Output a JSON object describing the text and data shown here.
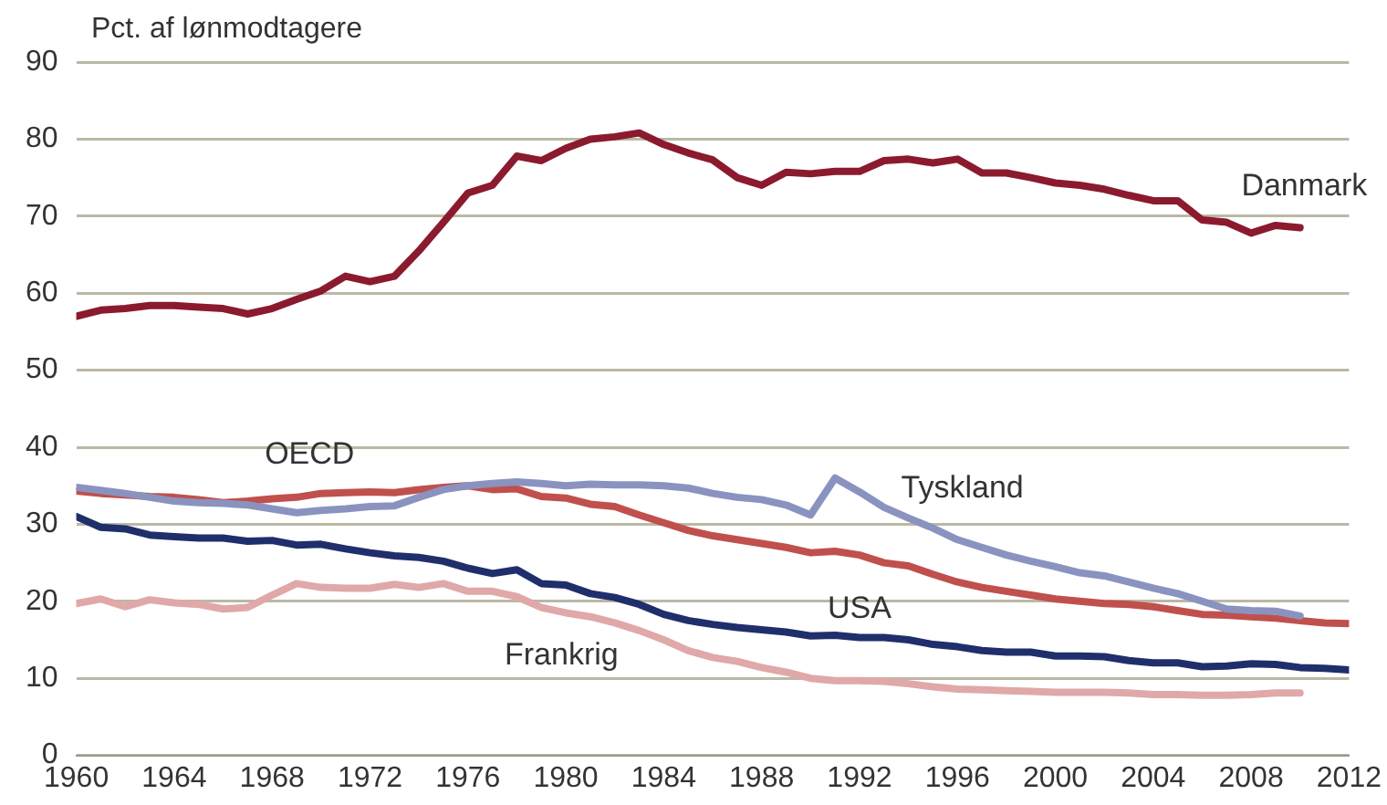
{
  "chart_data": {
    "type": "line",
    "ylabel": "Pct. af lønmodtagere",
    "x": [
      1960,
      1961,
      1962,
      1963,
      1964,
      1965,
      1966,
      1967,
      1968,
      1969,
      1970,
      1971,
      1972,
      1973,
      1974,
      1975,
      1976,
      1977,
      1978,
      1979,
      1980,
      1981,
      1982,
      1983,
      1984,
      1985,
      1986,
      1987,
      1988,
      1989,
      1990,
      1991,
      1992,
      1993,
      1994,
      1995,
      1996,
      1997,
      1998,
      1999,
      2000,
      2001,
      2002,
      2003,
      2004,
      2005,
      2006,
      2007,
      2008,
      2009,
      2010,
      2011,
      2012
    ],
    "xlim": [
      1960,
      2012
    ],
    "xticks": [
      1960,
      1964,
      1968,
      1972,
      1976,
      1980,
      1984,
      1988,
      1992,
      1996,
      2000,
      2004,
      2008,
      2012
    ],
    "ylim": [
      0,
      90
    ],
    "yticks": [
      0,
      10,
      20,
      30,
      40,
      50,
      60,
      70,
      80,
      90
    ],
    "grid": "y",
    "legend": false,
    "marker": "none",
    "line_style": "solid",
    "series": [
      {
        "name": "Danmark",
        "color": "#8b1a2e",
        "values": [
          57,
          57.8,
          58,
          58.4,
          58.4,
          58.2,
          58,
          57.3,
          58,
          59.2,
          60.3,
          62.2,
          61.5,
          62.2,
          65.5,
          69.2,
          73,
          74,
          77.8,
          77.2,
          78.8,
          80,
          80.3,
          80.8,
          79.3,
          78.2,
          77.3,
          75,
          74,
          75.7,
          75.5,
          75.8,
          75.8,
          77.2,
          77.4,
          76.9,
          77.4,
          75.6,
          75.6,
          75,
          74.3,
          74,
          73.5,
          72.7,
          72,
          72,
          69.5,
          69.2,
          67.8,
          68.8,
          68.5,
          null,
          null
        ]
      },
      {
        "name": "Tyskland",
        "color": "#8a93c0",
        "values": [
          34.8,
          34.4,
          34,
          33.5,
          33,
          32.8,
          32.7,
          32.5,
          32,
          31.5,
          31.8,
          32,
          32.3,
          32.4,
          33.5,
          34.5,
          35,
          35.3,
          35.5,
          35.3,
          35,
          35.2,
          35.1,
          35.1,
          35,
          34.7,
          34,
          33.5,
          33.2,
          32.5,
          31.2,
          36,
          34.2,
          32.2,
          30.8,
          29.5,
          28,
          27,
          26,
          25.2,
          24.5,
          23.7,
          23.3,
          22.5,
          21.7,
          21,
          20,
          19,
          18.8,
          18.7,
          18.1,
          null,
          null
        ]
      },
      {
        "name": "OECD",
        "color": "#c0504d",
        "values": [
          34.3,
          34,
          33.8,
          33.6,
          33.5,
          33.2,
          32.8,
          33,
          33.3,
          33.5,
          34,
          34.1,
          34.2,
          34.1,
          34.5,
          34.8,
          35,
          34.5,
          34.6,
          33.6,
          33.4,
          32.6,
          32.3,
          31.2,
          30.2,
          29.2,
          28.5,
          28,
          27.5,
          27,
          26.3,
          26.5,
          26,
          25,
          24.6,
          23.5,
          22.5,
          21.8,
          21.3,
          20.8,
          20.3,
          20,
          19.7,
          19.6,
          19.3,
          18.8,
          18.3,
          18.2,
          18,
          17.8,
          17.5,
          17.2,
          17.1
        ]
      },
      {
        "name": "USA",
        "color": "#1f2f6b",
        "values": [
          31,
          29.6,
          29.4,
          28.6,
          28.4,
          28.2,
          28.2,
          27.8,
          27.9,
          27.3,
          27.4,
          26.8,
          26.3,
          25.9,
          25.7,
          25.2,
          24.3,
          23.6,
          24.1,
          22.3,
          22.1,
          21,
          20.5,
          19.6,
          18.3,
          17.5,
          17,
          16.6,
          16.3,
          16,
          15.5,
          15.6,
          15.3,
          15.3,
          15,
          14.4,
          14.1,
          13.6,
          13.4,
          13.4,
          12.9,
          12.9,
          12.8,
          12.3,
          12,
          12,
          11.5,
          11.6,
          11.9,
          11.8,
          11.4,
          11.3,
          11.1
        ]
      },
      {
        "name": "Frankrig",
        "color": "#e0a8a8",
        "values": [
          19.7,
          20.3,
          19.3,
          20.2,
          19.8,
          19.6,
          19,
          19.2,
          20.8,
          22.3,
          21.8,
          21.7,
          21.7,
          22.2,
          21.8,
          22.3,
          21.3,
          21.3,
          20.6,
          19.2,
          18.5,
          18,
          17.2,
          16.2,
          15,
          13.6,
          12.7,
          12.2,
          11.4,
          10.8,
          10,
          9.7,
          9.7,
          9.6,
          9.3,
          8.9,
          8.6,
          8.5,
          8.4,
          8.3,
          8.2,
          8.2,
          8.2,
          8.1,
          7.9,
          7.9,
          7.8,
          7.8,
          7.9,
          8.1,
          8.1,
          null,
          null
        ]
      }
    ]
  }
}
